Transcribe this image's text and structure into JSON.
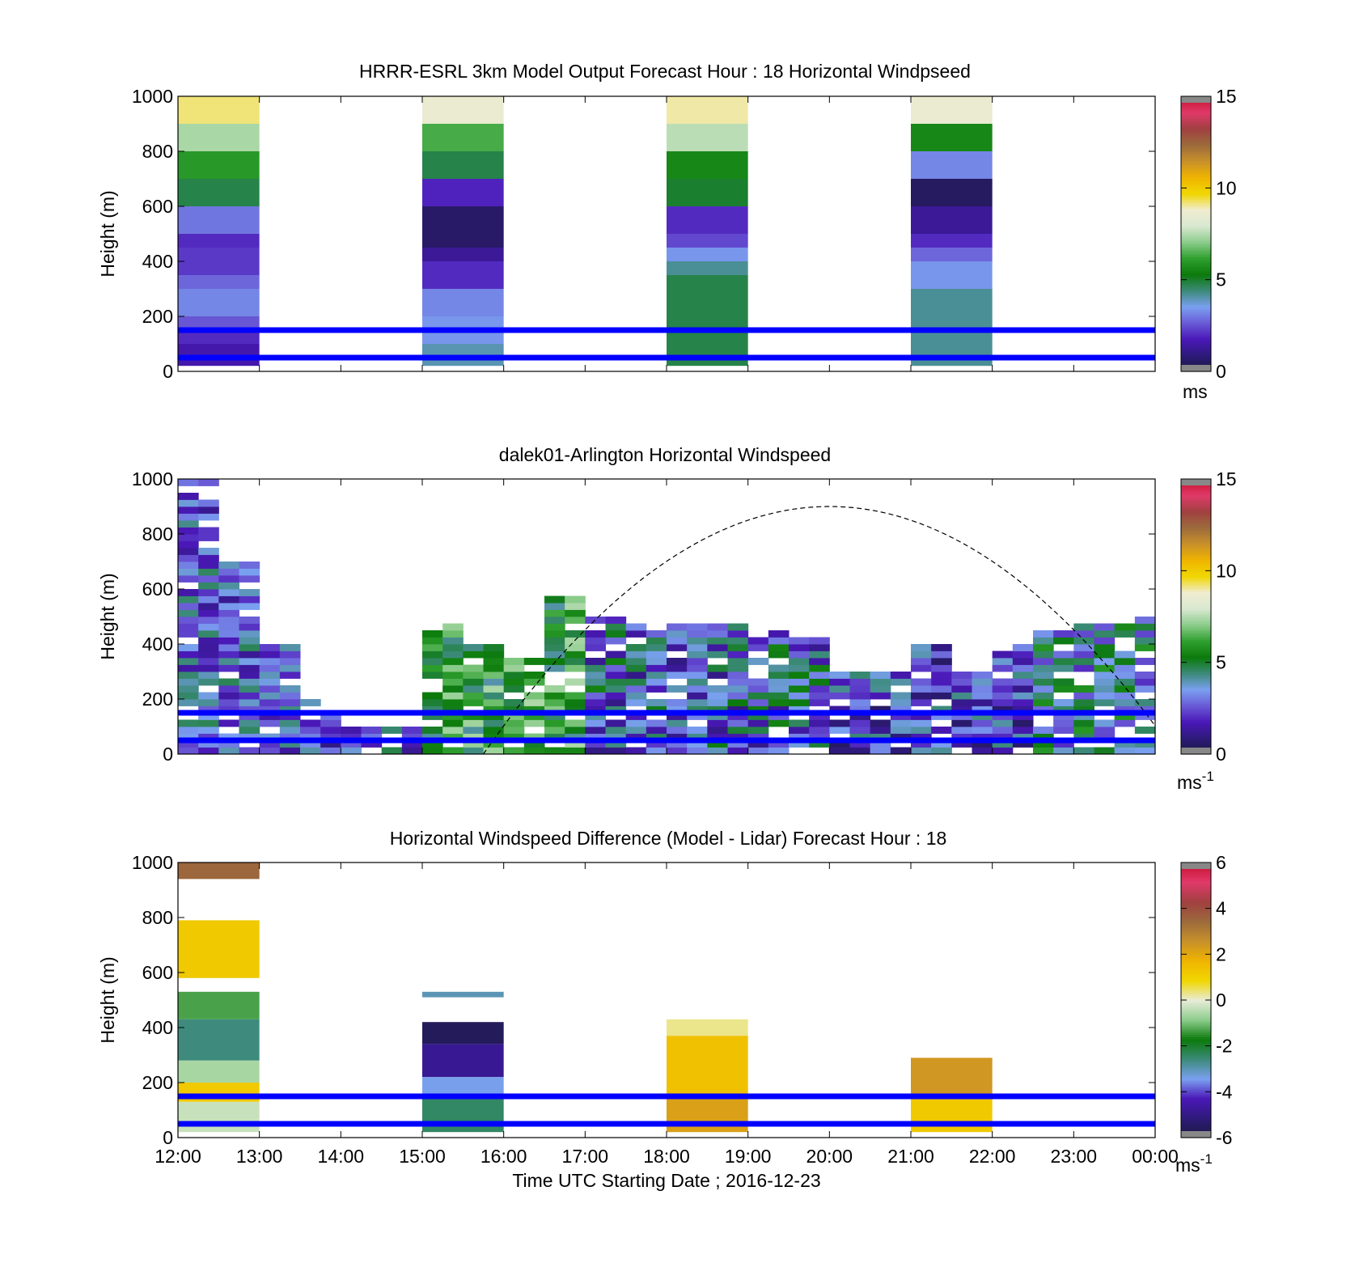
{
  "colors": {
    "reference_line": "#0000ff",
    "sun_curve": "#000000",
    "speed_colormap": [
      "#1b1b3f",
      "#2e1a7a",
      "#4a18b8",
      "#6a5ad6",
      "#7aa0f0",
      "#3c8a7a",
      "#0b7a0b",
      "#2fa02f",
      "#8ccc8c",
      "#d8e8d0",
      "#f0ecd0",
      "#f0d700",
      "#f0b400",
      "#c8902a",
      "#9c6b3c",
      "#a04040",
      "#e03a6a",
      "#c8102e"
    ],
    "diff_colormap": [
      "#1b1b3f",
      "#2e1a7a",
      "#4a18b8",
      "#7aa0f0",
      "#3c8a7a",
      "#0b7a0b",
      "#8ccc8c",
      "#e8ecd8",
      "#f0d700",
      "#f0b400",
      "#c8902a",
      "#9c6b3c",
      "#a04040",
      "#e03a6a",
      "#c8102e"
    ]
  },
  "chart_data": [
    {
      "type": "heatmap",
      "title": "HRRR-ESRL 3km Model Output   Forecast Hour : 18 Horizontal Windpseed",
      "ylabel": "Height (m)",
      "xlim": [
        "12:00",
        "00:00"
      ],
      "ylim": [
        0,
        1000
      ],
      "yticks": [
        "0",
        "200",
        "400",
        "600",
        "800",
        "1000"
      ],
      "colorbar": {
        "range": [
          0,
          15
        ],
        "ticks": [
          "0",
          "5",
          "10",
          "15"
        ],
        "unit": "ms"
      },
      "reference_lines_height_m": [
        50,
        150
      ],
      "columns": [
        {
          "start": "12:00",
          "end": "13:00",
          "levels": [
            {
              "height": [
                900,
                1000
              ],
              "speed": 9.2
            },
            {
              "height": [
                800,
                900
              ],
              "speed": 7.4
            },
            {
              "height": [
                700,
                800
              ],
              "speed": 6.0
            },
            {
              "height": [
                600,
                700
              ],
              "speed": 4.8
            },
            {
              "height": [
                500,
                600
              ],
              "speed": 3.0
            },
            {
              "height": [
                450,
                500
              ],
              "speed": 2.0
            },
            {
              "height": [
                350,
                450
              ],
              "speed": 2.2
            },
            {
              "height": [
                300,
                350
              ],
              "speed": 2.8
            },
            {
              "height": [
                200,
                300
              ],
              "speed": 3.2
            },
            {
              "height": [
                150,
                200
              ],
              "speed": 2.6
            },
            {
              "height": [
                100,
                150
              ],
              "speed": 2.0
            },
            {
              "height": [
                20,
                100
              ],
              "speed": 1.6
            }
          ]
        },
        {
          "start": "15:00",
          "end": "16:00",
          "levels": [
            {
              "height": [
                900,
                1000
              ],
              "speed": 8.6
            },
            {
              "height": [
                800,
                900
              ],
              "speed": 6.4
            },
            {
              "height": [
                700,
                800
              ],
              "speed": 4.8
            },
            {
              "height": [
                600,
                700
              ],
              "speed": 1.9
            },
            {
              "height": [
                450,
                600
              ],
              "speed": 0.6
            },
            {
              "height": [
                400,
                450
              ],
              "speed": 1.3
            },
            {
              "height": [
                300,
                400
              ],
              "speed": 2.0
            },
            {
              "height": [
                200,
                300
              ],
              "speed": 3.2
            },
            {
              "height": [
                100,
                200
              ],
              "speed": 3.4
            },
            {
              "height": [
                20,
                100
              ],
              "speed": 4.0
            }
          ]
        },
        {
          "start": "18:00",
          "end": "19:00",
          "levels": [
            {
              "height": [
                900,
                1000
              ],
              "speed": 9.0
            },
            {
              "height": [
                800,
                900
              ],
              "speed": 7.6
            },
            {
              "height": [
                700,
                800
              ],
              "speed": 5.6
            },
            {
              "height": [
                600,
                700
              ],
              "speed": 5.0
            },
            {
              "height": [
                500,
                600
              ],
              "speed": 2.0
            },
            {
              "height": [
                450,
                500
              ],
              "speed": 2.4
            },
            {
              "height": [
                400,
                450
              ],
              "speed": 3.4
            },
            {
              "height": [
                350,
                400
              ],
              "speed": 4.2
            },
            {
              "height": [
                20,
                350
              ],
              "speed": 4.8
            }
          ]
        },
        {
          "start": "21:00",
          "end": "22:00",
          "levels": [
            {
              "height": [
                900,
                1000
              ],
              "speed": 8.6
            },
            {
              "height": [
                800,
                900
              ],
              "speed": 5.6
            },
            {
              "height": [
                700,
                800
              ],
              "speed": 3.2
            },
            {
              "height": [
                600,
                700
              ],
              "speed": 0.5
            },
            {
              "height": [
                500,
                600
              ],
              "speed": 1.3
            },
            {
              "height": [
                450,
                500
              ],
              "speed": 2.0
            },
            {
              "height": [
                400,
                450
              ],
              "speed": 2.8
            },
            {
              "height": [
                300,
                400
              ],
              "speed": 3.4
            },
            {
              "height": [
                20,
                300
              ],
              "speed": 4.2
            }
          ]
        }
      ]
    },
    {
      "type": "heatmap",
      "title": "dalek01-Arlington  Horizontal Windspeed",
      "ylabel": "Height (m)",
      "xlim": [
        "12:00",
        "00:00"
      ],
      "ylim": [
        0,
        1000
      ],
      "yticks": [
        "0",
        "200",
        "400",
        "600",
        "800",
        "1000"
      ],
      "colorbar": {
        "range": [
          0,
          15
        ],
        "ticks": [
          "0",
          "5",
          "10",
          "15"
        ],
        "unit": "ms",
        "unit_exponent": "-1"
      },
      "reference_lines_height_m": [
        50,
        150
      ],
      "sun_elevation_curve": {
        "start": "15:45",
        "peak_time": "20:00",
        "peak_height": 900,
        "end": "00:00"
      },
      "profile_tops_m": [
        {
          "time": "12:00",
          "top": 1000
        },
        {
          "time": "12:30",
          "top": 700
        },
        {
          "time": "13:00",
          "top": 380
        },
        {
          "time": "13:30",
          "top": 200
        },
        {
          "time": "14:00",
          "top": 100
        },
        {
          "time": "14:30",
          "top": 80
        },
        {
          "time": "15:00",
          "top": 460
        },
        {
          "time": "15:30",
          "top": 380
        },
        {
          "time": "16:00",
          "top": 340
        },
        {
          "time": "16:30",
          "top": 560
        },
        {
          "time": "17:00",
          "top": 500
        },
        {
          "time": "17:30",
          "top": 470
        },
        {
          "time": "18:00",
          "top": 460
        },
        {
          "time": "18:30",
          "top": 470
        },
        {
          "time": "19:00",
          "top": 440
        },
        {
          "time": "19:30",
          "top": 420
        },
        {
          "time": "20:00",
          "top": 300
        },
        {
          "time": "20:30",
          "top": 300
        },
        {
          "time": "21:00",
          "top": 380
        },
        {
          "time": "21:30",
          "top": 300
        },
        {
          "time": "22:00",
          "top": 400
        },
        {
          "time": "22:30",
          "top": 440
        },
        {
          "time": "23:00",
          "top": 460
        },
        {
          "time": "23:30",
          "top": 500
        }
      ]
    },
    {
      "type": "heatmap",
      "title": "Horizontal Windspeed Difference (Model - Lidar) Forecast Hour : 18",
      "xlabel": "Time UTC  Starting Date ; 2016-12-23",
      "ylabel": "Height (m)",
      "xlim": [
        "12:00",
        "00:00"
      ],
      "ylim": [
        0,
        1000
      ],
      "xticks": [
        "12:00",
        "13:00",
        "14:00",
        "15:00",
        "16:00",
        "17:00",
        "18:00",
        "19:00",
        "20:00",
        "21:00",
        "22:00",
        "23:00",
        "00:00"
      ],
      "yticks": [
        "0",
        "200",
        "400",
        "600",
        "800",
        "1000"
      ],
      "colorbar": {
        "range": [
          -6,
          6
        ],
        "ticks": [
          "-6",
          "-4",
          "-2",
          "0",
          "2",
          "4",
          "6"
        ],
        "unit": "ms",
        "unit_exponent": "-1"
      },
      "reference_lines_height_m": [
        50,
        150
      ],
      "columns": [
        {
          "start": "12:00",
          "end": "13:00",
          "levels": [
            {
              "height": [
                940,
                1000
              ],
              "speed": 3.5
            },
            {
              "height": [
                580,
                790
              ],
              "speed": 1.2
            },
            {
              "height": [
                430,
                530
              ],
              "speed": -1.3
            },
            {
              "height": [
                280,
                430
              ],
              "speed": -2.6
            },
            {
              "height": [
                200,
                280
              ],
              "speed": -0.6
            },
            {
              "height": [
                130,
                200
              ],
              "speed": 1.2
            },
            {
              "height": [
                20,
                130
              ],
              "speed": -0.3
            }
          ]
        },
        {
          "start": "15:00",
          "end": "16:00",
          "levels": [
            {
              "height": [
                510,
                530
              ],
              "speed": -3.0
            },
            {
              "height": [
                340,
                420
              ],
              "speed": -5.6
            },
            {
              "height": [
                220,
                340
              ],
              "speed": -4.8
            },
            {
              "height": [
                150,
                220
              ],
              "speed": -3.4
            },
            {
              "height": [
                20,
                150
              ],
              "speed": -2.4
            }
          ]
        },
        {
          "start": "18:00",
          "end": "19:00",
          "levels": [
            {
              "height": [
                370,
                430
              ],
              "speed": 0.3
            },
            {
              "height": [
                150,
                370
              ],
              "speed": 1.4
            },
            {
              "height": [
                20,
                150
              ],
              "speed": 2.2
            }
          ]
        },
        {
          "start": "21:00",
          "end": "22:00",
          "levels": [
            {
              "height": [
                160,
                290
              ],
              "speed": 2.4
            },
            {
              "height": [
                20,
                160
              ],
              "speed": 1.2
            }
          ]
        }
      ]
    }
  ]
}
